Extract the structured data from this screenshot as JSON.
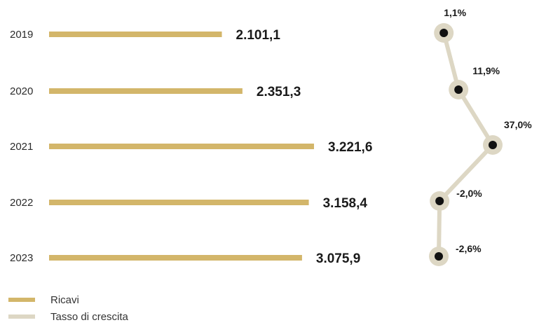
{
  "chart_data": {
    "type": "bar",
    "orientation": "horizontal",
    "categories": [
      "2019",
      "2020",
      "2021",
      "2022",
      "2023"
    ],
    "series": [
      {
        "name": "Ricavi",
        "values": [
          2101.1,
          2351.3,
          3221.6,
          3158.4,
          3075.9
        ],
        "labels": [
          "2.101,1",
          "2.351,3",
          "3.221,6",
          "3.158,4",
          "3.075,9"
        ],
        "color": "#d3b66a"
      },
      {
        "name": "Tasso di crescita",
        "type": "line",
        "values": [
          1.1,
          11.9,
          37.0,
          -2.0,
          -2.6
        ],
        "labels": [
          "1,1%",
          "11,9%",
          "37,0%",
          "-2,0%",
          "-2,6%"
        ],
        "color": "#ddd7c4",
        "marker_color": "#111111"
      }
    ],
    "legend": {
      "placement": "bottom-left",
      "items": [
        "Ricavi",
        "Tasso di crescita"
      ]
    },
    "grid": false
  }
}
